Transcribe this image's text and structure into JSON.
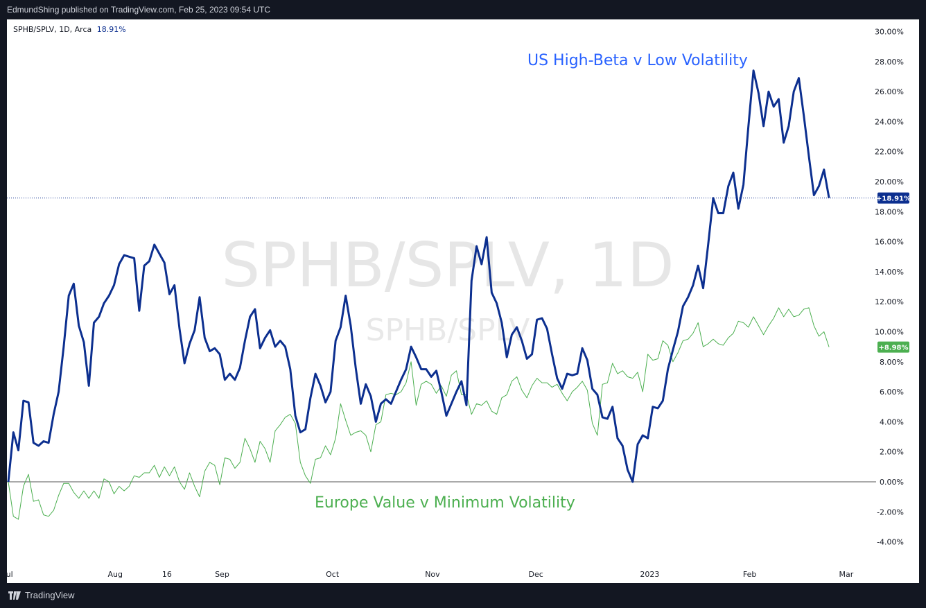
{
  "header": {
    "published": "EdmundShing published on TradingView.com, Feb 25, 2023 09:54 UTC"
  },
  "legend": {
    "symbol": "SPHB/SPLV, 1D, Arca",
    "value": "18.91%"
  },
  "watermark": {
    "big": "SPHB/SPLV, 1D",
    "small": "SPHB/SPLV"
  },
  "footer": {
    "brand": "TradingView"
  },
  "colors": {
    "blue_series": "#0c2f8f",
    "green_series": "#4caf50",
    "blue_annotation": "#2962ff",
    "green_annotation": "#4caf50"
  },
  "chart_data": {
    "type": "line",
    "annotations": [
      {
        "text": "US High-Beta v Low Volatility",
        "color": "#2962ff"
      },
      {
        "text": "Europe Value v Minimum Volatility",
        "color": "#4caf50"
      }
    ],
    "y_axis": {
      "ylim": [
        -5.0,
        31.0
      ],
      "ticks": [
        "30.00%",
        "28.00%",
        "26.00%",
        "24.00%",
        "22.00%",
        "20.00%",
        "18.00%",
        "16.00%",
        "14.00%",
        "12.00%",
        "10.00%",
        "8.00%",
        "6.00%",
        "4.00%",
        "2.00%",
        "0.00%",
        "-2.00%",
        "-4.00%"
      ],
      "tick_values": [
        30,
        28,
        26,
        24,
        22,
        20,
        18,
        16,
        14,
        12,
        10,
        8,
        6,
        4,
        2,
        0,
        -2,
        -4
      ]
    },
    "x_axis": {
      "xlim": [
        "2022-07-01",
        "2023-03-03"
      ],
      "ticks": [
        {
          "label": "Jul",
          "date": "2022-07-01"
        },
        {
          "label": "Aug",
          "date": "2022-08-01"
        },
        {
          "label": "16",
          "date": "2022-08-16"
        },
        {
          "label": "Sep",
          "date": "2022-09-01"
        },
        {
          "label": "Oct",
          "date": "2022-10-03"
        },
        {
          "label": "Nov",
          "date": "2022-11-01"
        },
        {
          "label": "Dec",
          "date": "2022-12-01"
        },
        {
          "label": "2023",
          "date": "2023-01-03"
        },
        {
          "label": "Feb",
          "date": "2023-02-01"
        },
        {
          "label": "Mar",
          "date": "2023-03-01"
        }
      ]
    },
    "price_labels": [
      {
        "text": "+18.91%",
        "value": 18.91,
        "color": "#0c2f8f"
      },
      {
        "text": "+8.98%",
        "value": 8.98,
        "color": "#4caf50"
      }
    ],
    "series": [
      {
        "name": "SPHB/SPLV",
        "color": "#0c2f8f",
        "start_date": "2022-07-01",
        "values": [
          0.0,
          3.3,
          2.1,
          5.4,
          5.3,
          2.6,
          2.4,
          2.7,
          2.6,
          4.5,
          6.0,
          9.0,
          12.4,
          13.2,
          10.4,
          9.3,
          6.4,
          10.6,
          11.0,
          11.9,
          12.4,
          13.1,
          14.5,
          15.1,
          15.0,
          14.9,
          11.4,
          14.4,
          14.7,
          15.8,
          15.2,
          14.6,
          12.5,
          13.1,
          10.2,
          7.9,
          9.2,
          10.1,
          12.3,
          9.6,
          8.7,
          8.9,
          8.5,
          6.8,
          7.2,
          6.8,
          7.6,
          9.4,
          11.0,
          11.5,
          8.9,
          9.6,
          10.1,
          9.0,
          9.4,
          9.0,
          7.5,
          4.4,
          3.3,
          3.5,
          5.6,
          7.2,
          6.4,
          5.3,
          6.0,
          9.4,
          10.3,
          12.4,
          10.4,
          7.6,
          5.2,
          6.5,
          5.7,
          4.0,
          5.2,
          5.5,
          5.2,
          6.0,
          6.8,
          7.5,
          9.0,
          8.3,
          7.5,
          7.5,
          7.0,
          7.4,
          6.0,
          4.4,
          5.2,
          6.0,
          6.7,
          5.1,
          13.4,
          15.7,
          14.5,
          16.3,
          12.6,
          11.9,
          10.6,
          8.3,
          9.8,
          10.3,
          9.4,
          8.2,
          8.5,
          10.8,
          10.9,
          10.2,
          8.5,
          6.9,
          6.2,
          7.2,
          7.1,
          7.2,
          8.9,
          8.1,
          6.2,
          5.8,
          4.3,
          4.2,
          5.0,
          2.9,
          2.4,
          0.8,
          0.0,
          2.5,
          3.1,
          2.9,
          5.0,
          4.9,
          5.4,
          7.5,
          8.8,
          10.0,
          11.7,
          12.3,
          13.1,
          14.4,
          12.9,
          15.8,
          18.9,
          17.9,
          17.9,
          19.7,
          20.6,
          18.2,
          19.8,
          23.7,
          27.4,
          25.9,
          23.7,
          26.0,
          25.0,
          25.5,
          22.6,
          23.7,
          26.0,
          26.9,
          24.4,
          21.7,
          19.1,
          19.7,
          20.8,
          18.91
        ]
      },
      {
        "name": "Europe Value v Minimum Volatility",
        "color": "#4caf50",
        "start_date": "2022-07-01",
        "values": [
          0.0,
          -2.3,
          -2.5,
          -0.3,
          0.5,
          -1.3,
          -1.2,
          -2.2,
          -2.3,
          -1.9,
          -0.9,
          -0.1,
          -0.1,
          -0.7,
          -1.1,
          -0.6,
          -1.1,
          -0.6,
          -1.1,
          0.2,
          0.0,
          -0.8,
          -0.3,
          -0.6,
          -0.3,
          0.4,
          0.3,
          0.6,
          0.6,
          1.1,
          0.3,
          1.0,
          0.4,
          1.0,
          0.0,
          -0.5,
          0.6,
          -0.3,
          -1.0,
          0.7,
          1.3,
          1.1,
          -0.2,
          1.6,
          1.5,
          0.9,
          1.3,
          2.9,
          2.2,
          1.3,
          2.7,
          2.2,
          1.3,
          3.4,
          3.8,
          4.3,
          4.5,
          3.9,
          1.3,
          0.4,
          -0.1,
          1.5,
          1.6,
          2.4,
          1.8,
          2.9,
          5.2,
          4.1,
          3.1,
          3.3,
          3.4,
          3.1,
          2.0,
          3.8,
          4.0,
          5.8,
          5.9,
          5.8,
          6.0,
          6.6,
          8.0,
          5.1,
          6.5,
          6.7,
          6.5,
          5.9,
          6.4,
          5.7,
          7.1,
          7.4,
          5.8,
          5.8,
          4.5,
          5.2,
          5.1,
          5.4,
          4.7,
          4.5,
          5.6,
          5.8,
          6.7,
          7.0,
          6.1,
          5.6,
          6.4,
          6.9,
          6.6,
          6.6,
          6.3,
          6.5,
          5.9,
          5.4,
          6.0,
          6.3,
          6.7,
          6.1,
          3.9,
          3.1,
          6.5,
          6.6,
          7.9,
          7.2,
          7.4,
          7.0,
          6.9,
          7.3,
          6.0,
          8.5,
          8.1,
          8.2,
          9.4,
          9.1,
          8.0,
          8.6,
          9.4,
          9.5,
          9.9,
          10.6,
          9.0,
          9.2,
          9.5,
          9.2,
          9.1,
          9.6,
          9.9,
          10.7,
          10.6,
          10.3,
          11.0,
          10.4,
          9.8,
          10.4,
          10.9,
          11.6,
          11.0,
          11.5,
          11.0,
          11.1,
          11.5,
          11.6,
          10.4,
          9.7,
          10.0,
          8.98
        ]
      }
    ]
  }
}
